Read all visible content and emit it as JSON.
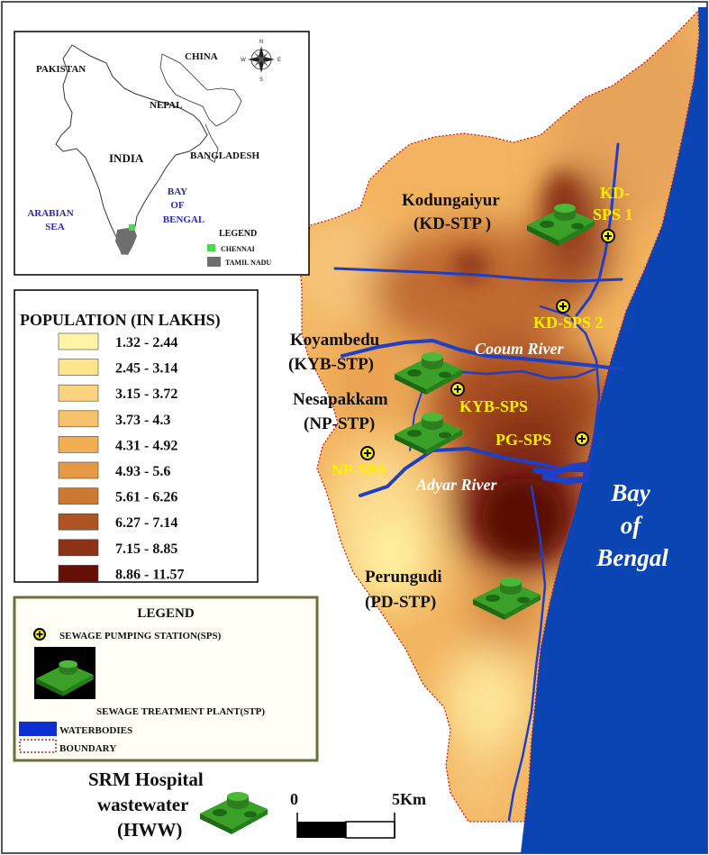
{
  "inset": {
    "countries": {
      "pakistan": "PAKISTAN",
      "china": "CHINA",
      "nepal": "NEPAL",
      "india": "INDIA",
      "bangladesh": "BANGLADESH"
    },
    "seas": {
      "arabian_1": "ARABIAN",
      "arabian_2": "SEA",
      "bay_1": "BAY",
      "bay_2": "OF",
      "bay_3": "BENGAL"
    },
    "compass": {
      "n": "N",
      "s": "S",
      "e": "E",
      "w": "W"
    },
    "legend_title": "LEGEND",
    "legend_items": [
      {
        "label": "CHENNAI",
        "color": "#44dd44"
      },
      {
        "label": "TAMIL NADU",
        "color": "#6e6e6e"
      }
    ]
  },
  "population_legend": {
    "title": "POPULATION (IN LAKHS)",
    "classes": [
      {
        "label": "1.32 - 2.44",
        "color": "#fff3a6"
      },
      {
        "label": "2.45 - 3.14",
        "color": "#fde58e"
      },
      {
        "label": "3.15 - 3.72",
        "color": "#fad47e"
      },
      {
        "label": "3.73 - 4.3",
        "color": "#f6c26c"
      },
      {
        "label": "4.31 - 4.92",
        "color": "#f2ae52"
      },
      {
        "label": "4.93 - 5.6",
        "color": "#e69a46"
      },
      {
        "label": "5.61 - 6.26",
        "color": "#cc7a32"
      },
      {
        "label": "6.27 - 7.14",
        "color": "#ad5422"
      },
      {
        "label": "7.15 - 8.85",
        "color": "#8c3414"
      },
      {
        "label": "8.86 - 11.57",
        "color": "#66100a"
      }
    ]
  },
  "symbol_legend": {
    "title": "LEGEND",
    "sps": "SEWAGE PUMPING STATION(SPS)",
    "stp": "SEWAGE TREATMENT PLANT(STP)",
    "waterbodies": "WATERBODIES",
    "boundary": "BOUNDARY"
  },
  "map": {
    "stp_labels": [
      {
        "line1": "Kodungaiyur",
        "line2": "(KD-STP )"
      },
      {
        "line1": "Koyambedu",
        "line2": "(KYB-STP)"
      },
      {
        "line1": "Nesapakkam",
        "line2": "(NP-STP)"
      },
      {
        "line1": "Perungudi",
        "line2": "(PD-STP)"
      }
    ],
    "sps_labels": {
      "kd1_a": "KD-",
      "kd1_b": "SPS 1",
      "kd2": "KD-SPS 2",
      "kyb": "KYB-SPS",
      "pg": "PG-SPS",
      "np": "NP-SPS"
    },
    "rivers": {
      "cooum": "Cooum River",
      "adyar": "Adyar River"
    },
    "sea": {
      "line1": "Bay",
      "line2": "of",
      "line3": "Bengal"
    },
    "hospital": {
      "line1": "SRM Hospital",
      "line2": "wastewater",
      "line3": "(HWW)"
    },
    "scale": {
      "start": "0",
      "end": "5Km"
    },
    "colors": {
      "sea": "#0b44b3",
      "river": "#1f3fc4",
      "sps_label": "#ffee00",
      "stp_green": "#2e8b1e"
    }
  }
}
